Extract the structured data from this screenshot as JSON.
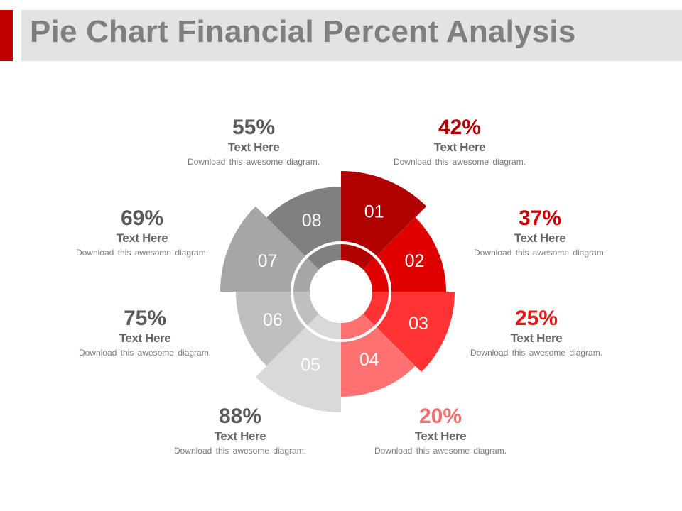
{
  "title": "Pie Chart Financial Percent Analysis",
  "segments": [
    {
      "num": "01",
      "pct": "42%",
      "heading": "Text Here",
      "desc": "Download  this awesome  diagram.",
      "color": "#b00000",
      "pct_color": "#b00000"
    },
    {
      "num": "02",
      "pct": "37%",
      "heading": "Text Here",
      "desc": "Download  this awesome  diagram.",
      "color": "#e00000",
      "pct_color": "#d40000"
    },
    {
      "num": "03",
      "pct": "25%",
      "heading": "Text Here",
      "desc": "Download  this awesome  diagram.",
      "color": "#ff3333",
      "pct_color": "#e81818"
    },
    {
      "num": "04",
      "pct": "20%",
      "heading": "Text Here",
      "desc": "Download  this awesome  diagram.",
      "color": "#ff7070",
      "pct_color": "#f07070"
    },
    {
      "num": "05",
      "pct": "88%",
      "heading": "Text Here",
      "desc": "Download  this awesome  diagram.",
      "color": "#d9d9d9",
      "pct_color": "#595959"
    },
    {
      "num": "06",
      "pct": "75%",
      "heading": "Text Here",
      "desc": "Download  this awesome  diagram.",
      "color": "#bfbfbf",
      "pct_color": "#595959"
    },
    {
      "num": "07",
      "pct": "69%",
      "heading": "Text Here",
      "desc": "Download  this awesome  diagram.",
      "color": "#a6a6a6",
      "pct_color": "#595959"
    },
    {
      "num": "08",
      "pct": "55%",
      "heading": "Text Here",
      "desc": "Download  this awesome  diagram.",
      "color": "#808080",
      "pct_color": "#595959"
    }
  ]
}
